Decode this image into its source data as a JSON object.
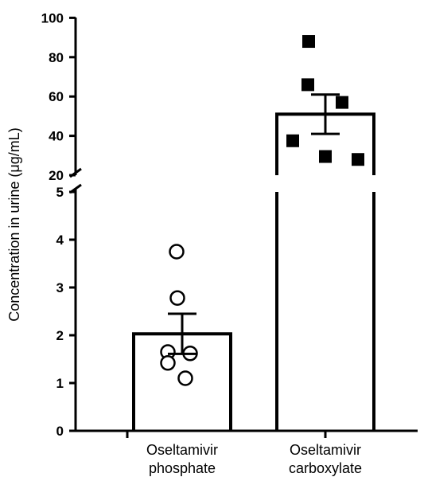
{
  "chart_data": {
    "type": "bar",
    "title": "",
    "xlabel": "",
    "ylabel": "Concentration in urine (μg/mL)",
    "axis_break": {
      "lower_range": [
        0,
        5
      ],
      "upper_range": [
        20,
        100
      ]
    },
    "yticks_lower": [
      "0",
      "1",
      "2",
      "3",
      "4",
      "5"
    ],
    "yticks_upper": [
      "20",
      "40",
      "60",
      "80",
      "100"
    ],
    "categories": [
      {
        "line1": "Oseltamivir",
        "line2": "phosphate"
      },
      {
        "line1": "Oseltamivir",
        "line2": "carboxylate"
      }
    ],
    "series": [
      {
        "category": "Oseltamivir phosphate",
        "mean": 2.03,
        "sem": 0.42,
        "marker": "open-circle",
        "points": [
          3.75,
          2.78,
          1.65,
          1.62,
          1.42,
          1.1
        ]
      },
      {
        "category": "Oseltamivir carboxylate",
        "mean": 51,
        "sem": 10,
        "marker": "filled-square",
        "points": [
          88,
          66,
          57,
          37.5,
          29.5,
          28
        ]
      }
    ]
  }
}
